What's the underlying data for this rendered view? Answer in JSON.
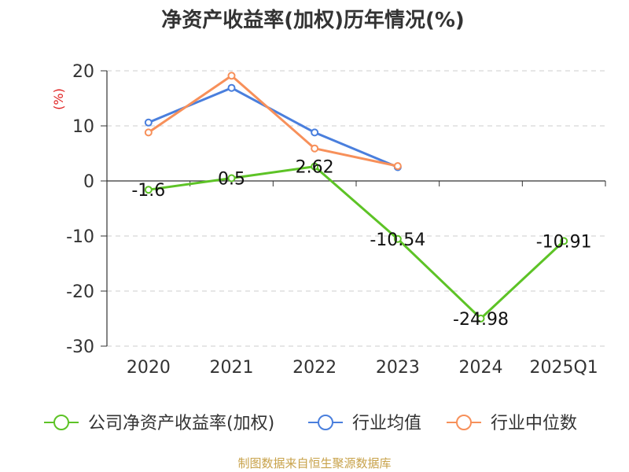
{
  "chart_data": {
    "type": "line",
    "title": "净资产收益率(加权)历年情况(%)",
    "ylabel": "(%)",
    "categories": [
      "2020",
      "2021",
      "2022",
      "2023",
      "2024",
      "2025Q1"
    ],
    "ylim": [
      -30,
      20
    ],
    "yticks": [
      20,
      10,
      0,
      -10,
      -20,
      -30
    ],
    "grid": true,
    "legend_position": "bottom",
    "series": [
      {
        "name": "公司净资产收益率(加权)",
        "color": "#5dc326",
        "values": [
          -1.6,
          0.5,
          2.62,
          -10.54,
          -24.98,
          -10.91
        ],
        "labels": [
          "-1.6",
          "0.5",
          "2.62",
          "-10.54",
          "-24.98",
          "-10.91"
        ]
      },
      {
        "name": "行业均值",
        "color": "#4a7fdd",
        "values": [
          10.6,
          16.9,
          8.8,
          2.5,
          null,
          null
        ]
      },
      {
        "name": "行业中位数",
        "color": "#f7905a",
        "values": [
          8.8,
          19.1,
          5.9,
          2.7,
          null,
          null
        ]
      }
    ]
  },
  "footer": {
    "source": "制图数据来自恒生聚源数据库"
  }
}
